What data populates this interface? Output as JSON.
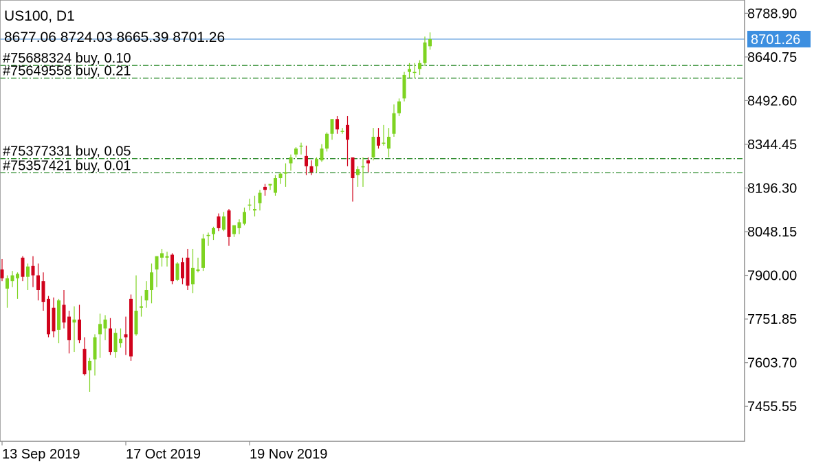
{
  "header": {
    "title": "US100, D1",
    "ohlc": "8677.06 8724.03 8665.39 8701.26"
  },
  "colors": {
    "bull": "#7ed321",
    "bear": "#d0021b",
    "order_line": "#0f7a0f",
    "current_price_line": "#4a90d9",
    "current_price_tag": "#3d8fe0",
    "frame": "#8c8c8c"
  },
  "chart_data": {
    "type": "candlestick",
    "symbol": "US100",
    "timeframe": "D1",
    "current_price": 8701.26,
    "current_price_label": "8701.26",
    "ylim": [
      7337,
      8834
    ],
    "y_ticks": [
      "8788.90",
      "8640.75",
      "8492.60",
      "8344.45",
      "8196.30",
      "8048.15",
      "7900.00",
      "7751.85",
      "7603.70",
      "7455.55"
    ],
    "x_ticks": [
      "13 Sep 2019",
      "17 Oct 2019",
      "19 Nov 2019"
    ],
    "x_tick_bars": [
      0,
      24,
      48
    ],
    "orders": [
      {
        "label": "#75688324 buy, 0.10",
        "price": 8612
      },
      {
        "label": "#75649558 buy, 0.21",
        "price": 8569
      },
      {
        "label": "#75377331 buy, 0.05",
        "price": 8296
      },
      {
        "label": "#75357421 buy, 0.01",
        "price": 8248
      }
    ],
    "candles": [
      [
        7920,
        7955,
        7880,
        7890
      ],
      [
        7855,
        7900,
        7790,
        7890
      ],
      [
        7880,
        7915,
        7860,
        7900
      ],
      [
        7890,
        7910,
        7820,
        7905
      ],
      [
        7960,
        7965,
        7880,
        7895
      ],
      [
        7895,
        7940,
        7850,
        7930
      ],
      [
        7932,
        7965,
        7860,
        7900
      ],
      [
        7900,
        7940,
        7815,
        7850
      ],
      [
        7880,
        7910,
        7780,
        7810
      ],
      [
        7820,
        7830,
        7690,
        7700
      ],
      [
        7790,
        7825,
        7690,
        7710
      ],
      [
        7715,
        7820,
        7670,
        7815
      ],
      [
        7800,
        7850,
        7720,
        7740
      ],
      [
        7760,
        7780,
        7635,
        7680
      ],
      [
        7740,
        7795,
        7640,
        7750
      ],
      [
        7750,
        7800,
        7670,
        7680
      ],
      [
        7650,
        7690,
        7560,
        7565
      ],
      [
        7578,
        7620,
        7505,
        7610
      ],
      [
        7615,
        7700,
        7560,
        7690
      ],
      [
        7700,
        7770,
        7620,
        7735
      ],
      [
        7720,
        7765,
        7680,
        7750
      ],
      [
        7720,
        7755,
        7630,
        7640
      ],
      [
        7640,
        7720,
        7620,
        7705
      ],
      [
        7670,
        7720,
        7655,
        7685
      ],
      [
        7700,
        7760,
        7630,
        7690
      ],
      [
        7820,
        7835,
        7610,
        7625
      ],
      [
        7700,
        7900,
        7695,
        7780
      ],
      [
        7790,
        7830,
        7760,
        7795
      ],
      [
        7815,
        7880,
        7790,
        7850
      ],
      [
        7850,
        7940,
        7805,
        7910
      ],
      [
        7920,
        7965,
        7860,
        7965
      ],
      [
        7960,
        7990,
        7930,
        7975
      ],
      [
        7960,
        7980,
        7930,
        7965
      ],
      [
        7970,
        7975,
        7870,
        7880
      ],
      [
        7885,
        7945,
        7880,
        7940
      ],
      [
        7945,
        7960,
        7870,
        7890
      ],
      [
        7960,
        7990,
        7850,
        7865
      ],
      [
        7870,
        7990,
        7840,
        7925
      ],
      [
        7915,
        7960,
        7910,
        7920
      ],
      [
        7925,
        8040,
        7915,
        8025
      ],
      [
        8035,
        8045,
        8000,
        8037
      ],
      [
        8040,
        8065,
        8020,
        8060
      ],
      [
        8100,
        8110,
        8050,
        8060
      ],
      [
        8055,
        8115,
        8050,
        8100
      ],
      [
        8120,
        8125,
        8000,
        8030
      ],
      [
        8040,
        8070,
        8030,
        8070
      ],
      [
        8060,
        8090,
        8040,
        8080
      ],
      [
        8075,
        8130,
        8070,
        8115
      ],
      [
        8140,
        8160,
        8120,
        8140
      ],
      [
        8120,
        8170,
        8100,
        8125
      ],
      [
        8145,
        8190,
        8120,
        8180
      ],
      [
        8200,
        8210,
        8170,
        8190
      ],
      [
        8205,
        8210,
        8190,
        8210
      ],
      [
        8180,
        8240,
        8170,
        8230
      ],
      [
        8230,
        8250,
        8210,
        8245
      ],
      [
        8245,
        8280,
        8200,
        8250
      ],
      [
        8280,
        8310,
        8255,
        8300
      ],
      [
        8310,
        8335,
        8300,
        8330
      ],
      [
        8340,
        8350,
        8310,
        8340
      ],
      [
        8305,
        8340,
        8240,
        8270
      ],
      [
        8270,
        8290,
        8240,
        8250
      ],
      [
        8270,
        8300,
        8250,
        8295
      ],
      [
        8290,
        8345,
        8285,
        8330
      ],
      [
        8330,
        8385,
        8320,
        8380
      ],
      [
        8380,
        8430,
        8360,
        8430
      ],
      [
        8430,
        8440,
        8380,
        8395
      ],
      [
        8390,
        8400,
        8380,
        8390
      ],
      [
        8410,
        8440,
        8270,
        8360
      ],
      [
        8300,
        8300,
        8150,
        8230
      ],
      [
        8240,
        8270,
        8200,
        8260
      ],
      [
        8270,
        8300,
        8200,
        8270
      ],
      [
        8290,
        8300,
        8250,
        8280
      ],
      [
        8300,
        8400,
        8290,
        8370
      ],
      [
        8370,
        8400,
        8330,
        8340
      ],
      [
        8350,
        8410,
        8340,
        8350
      ],
      [
        8330,
        8400,
        8300,
        8370
      ],
      [
        8380,
        8480,
        8370,
        8450
      ],
      [
        8450,
        8500,
        8440,
        8490
      ],
      [
        8500,
        8590,
        8490,
        8580
      ],
      [
        8590,
        8620,
        8570,
        8600
      ],
      [
        8590,
        8620,
        8570,
        8590
      ],
      [
        8600,
        8630,
        8580,
        8620
      ],
      [
        8620,
        8710,
        8610,
        8690
      ],
      [
        8677.06,
        8724.03,
        8665.39,
        8701.26
      ]
    ]
  }
}
